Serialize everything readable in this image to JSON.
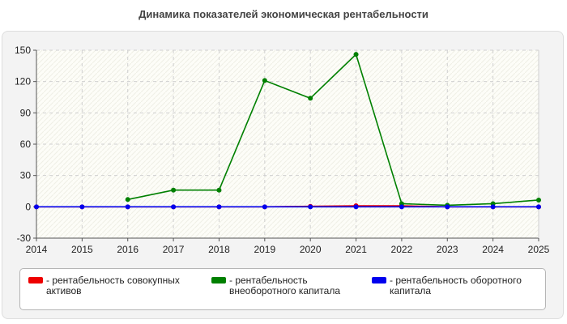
{
  "chart_data": {
    "type": "line",
    "title": "Динамика показателей экономическая рентабельности",
    "x": [
      "2014",
      "2015",
      "2016",
      "2017",
      "2018",
      "2019",
      "2020",
      "2021",
      "2022",
      "2023",
      "2024",
      "2025"
    ],
    "y_ticks": [
      "150",
      "120",
      "90",
      "60",
      "30",
      "0",
      "-30"
    ],
    "ylim": [
      -30,
      150
    ],
    "grid": true,
    "legend_position": "bottom",
    "series": [
      {
        "name": "- рентабельность совокупных\nактивов",
        "color": "#ee0000",
        "values": [
          0,
          0,
          0,
          0,
          0,
          0,
          0.5,
          1,
          1,
          0,
          0,
          0
        ]
      },
      {
        "name": "- рентабельность\nвнеоборотного капитала",
        "color": "#008000",
        "values": [
          null,
          null,
          7,
          16,
          16,
          121,
          104,
          146,
          3,
          1.5,
          3,
          6.5
        ]
      },
      {
        "name": "- рентабельность оборотного\nкапитала",
        "color": "#0000ee",
        "values": [
          0,
          0,
          0,
          0,
          0,
          0,
          0,
          0,
          0,
          0,
          0,
          0
        ]
      }
    ]
  }
}
